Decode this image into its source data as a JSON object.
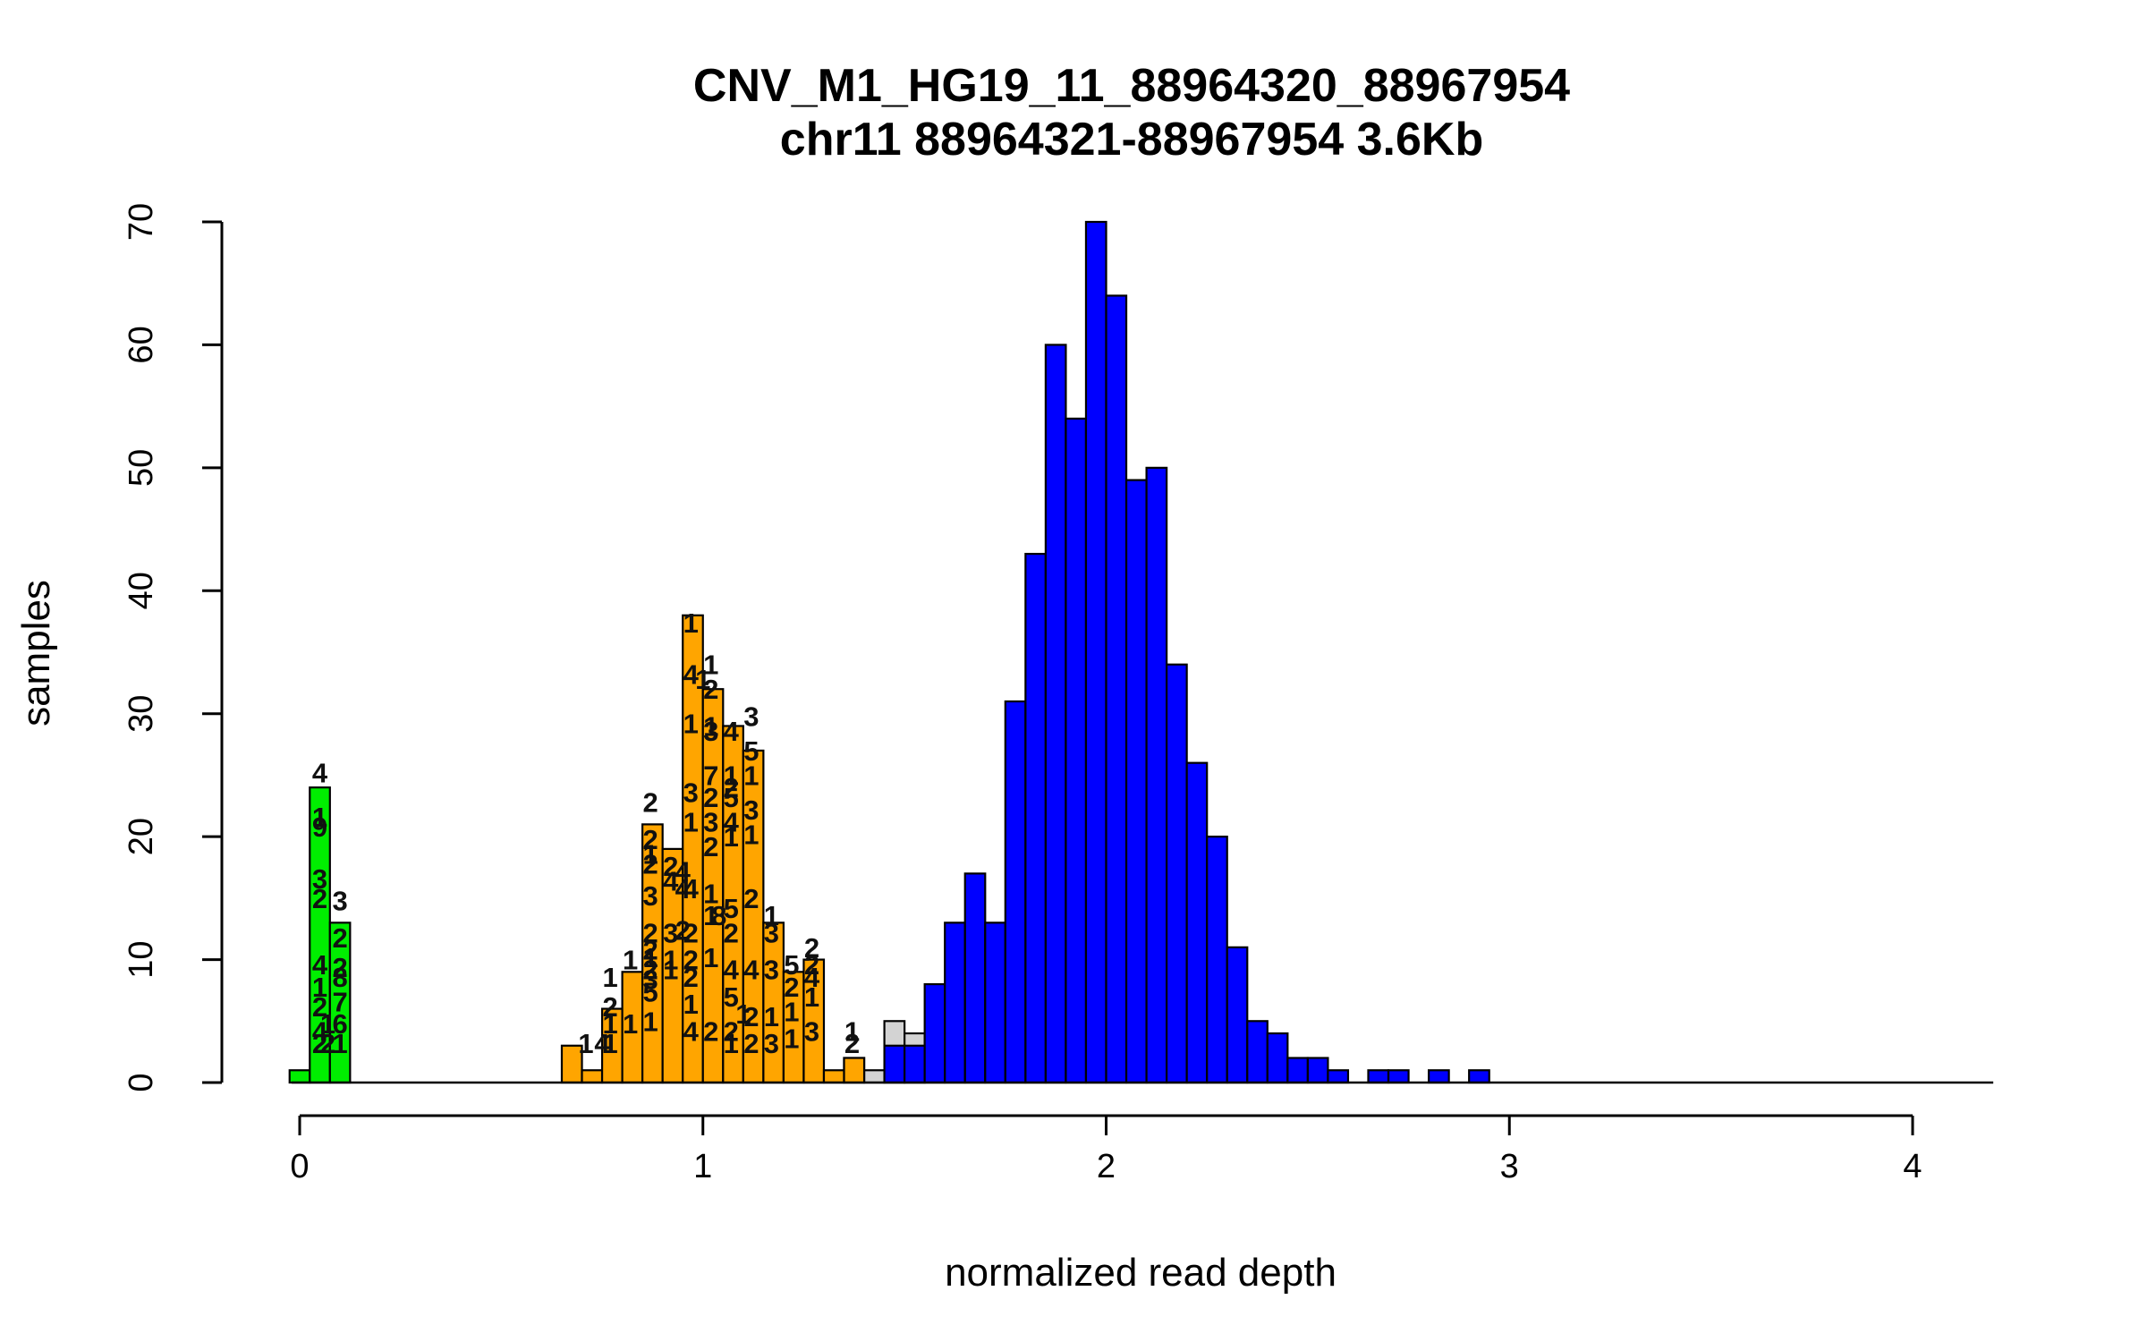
{
  "chart_data": {
    "type": "bar",
    "title": "CNV_M1_HG19_11_88964320_88967954",
    "subtitle": "chr11 88964321-88967954 3.6Kb",
    "xlabel": "normalized read depth",
    "ylabel": "samples",
    "xlim": [
      -0.2,
      4.2
    ],
    "ylim": [
      0,
      70
    ],
    "x_ticks": [
      {
        "value": 0,
        "label": "0"
      },
      {
        "value": 1,
        "label": "1"
      },
      {
        "value": 2,
        "label": "2"
      },
      {
        "value": 3,
        "label": "3"
      },
      {
        "value": 4,
        "label": "4"
      }
    ],
    "y_ticks": [
      {
        "value": 0,
        "label": "0"
      },
      {
        "value": 10,
        "label": "10"
      },
      {
        "value": 20,
        "label": "20"
      },
      {
        "value": 30,
        "label": "30"
      },
      {
        "value": 40,
        "label": "40"
      },
      {
        "value": 50,
        "label": "50"
      },
      {
        "value": 60,
        "label": "60"
      },
      {
        "value": 70,
        "label": "70"
      }
    ],
    "bin_width": 0.05,
    "colors": {
      "copy0": "#00ee00",
      "copy1": "#ffa500",
      "copy2": "#0000ff",
      "unassigned": "#d3d3d3"
    },
    "series": [
      {
        "group": "unassigned",
        "color": "#d3d3d3",
        "bins": [
          {
            "x0": 1.35,
            "count": 2
          },
          {
            "x0": 1.4,
            "count": 1
          },
          {
            "x0": 1.45,
            "count": 5
          },
          {
            "x0": 1.5,
            "count": 4
          }
        ]
      },
      {
        "group": "copy0",
        "color": "#00ee00",
        "bins": [
          {
            "x0": -0.025,
            "count": 1
          },
          {
            "x0": 0.025,
            "count": 24
          },
          {
            "x0": 0.075,
            "count": 13
          }
        ]
      },
      {
        "group": "copy1",
        "color": "#ffa500",
        "bins": [
          {
            "x0": 0.65,
            "count": 3
          },
          {
            "x0": 0.7,
            "count": 1
          },
          {
            "x0": 0.75,
            "count": 6
          },
          {
            "x0": 0.8,
            "count": 9
          },
          {
            "x0": 0.85,
            "count": 21
          },
          {
            "x0": 0.9,
            "count": 19
          },
          {
            "x0": 0.95,
            "count": 38
          },
          {
            "x0": 1.0,
            "count": 32
          },
          {
            "x0": 1.05,
            "count": 29
          },
          {
            "x0": 1.1,
            "count": 27
          },
          {
            "x0": 1.15,
            "count": 13
          },
          {
            "x0": 1.2,
            "count": 9
          },
          {
            "x0": 1.25,
            "count": 10
          },
          {
            "x0": 1.3,
            "count": 1
          },
          {
            "x0": 1.35,
            "count": 2
          }
        ]
      },
      {
        "group": "copy2",
        "color": "#0000ff",
        "bins": [
          {
            "x0": 1.45,
            "count": 3
          },
          {
            "x0": 1.5,
            "count": 3
          },
          {
            "x0": 1.55,
            "count": 8
          },
          {
            "x0": 1.6,
            "count": 13
          },
          {
            "x0": 1.65,
            "count": 17
          },
          {
            "x0": 1.7,
            "count": 13
          },
          {
            "x0": 1.75,
            "count": 31
          },
          {
            "x0": 1.8,
            "count": 43
          },
          {
            "x0": 1.85,
            "count": 60
          },
          {
            "x0": 1.9,
            "count": 54
          },
          {
            "x0": 1.95,
            "count": 70
          },
          {
            "x0": 2.0,
            "count": 64
          },
          {
            "x0": 2.05,
            "count": 49
          },
          {
            "x0": 2.1,
            "count": 50
          },
          {
            "x0": 2.15,
            "count": 34
          },
          {
            "x0": 2.2,
            "count": 26
          },
          {
            "x0": 2.25,
            "count": 20
          },
          {
            "x0": 2.3,
            "count": 11
          },
          {
            "x0": 2.35,
            "count": 5
          },
          {
            "x0": 2.4,
            "count": 4
          },
          {
            "x0": 2.45,
            "count": 2
          },
          {
            "x0": 2.5,
            "count": 2
          },
          {
            "x0": 2.55,
            "count": 1
          },
          {
            "x0": 2.65,
            "count": 1
          },
          {
            "x0": 2.7,
            "count": 1
          },
          {
            "x0": 2.8,
            "count": 1
          },
          {
            "x0": 2.9,
            "count": 1
          }
        ]
      }
    ],
    "bar_annotations": [
      {
        "x": 0.05,
        "y": 25.2,
        "text": "4"
      },
      {
        "x": 0.05,
        "y": 21.6,
        "text": "1"
      },
      {
        "x": 0.05,
        "y": 20.8,
        "text": "9"
      },
      {
        "x": 0.05,
        "y": 16.6,
        "text": "3"
      },
      {
        "x": 0.05,
        "y": 15.0,
        "text": "2"
      },
      {
        "x": 0.05,
        "y": 9.6,
        "text": "4"
      },
      {
        "x": 0.05,
        "y": 7.8,
        "text": "1"
      },
      {
        "x": 0.05,
        "y": 6.2,
        "text": "2"
      },
      {
        "x": 0.05,
        "y": 4.2,
        "text": "4"
      },
      {
        "x": 0.05,
        "y": 3.2,
        "text": "2"
      },
      {
        "x": 0.1,
        "y": 14.8,
        "text": "3"
      },
      {
        "x": 0.1,
        "y": 11.8,
        "text": "2"
      },
      {
        "x": 0.1,
        "y": 9.4,
        "text": "2"
      },
      {
        "x": 0.1,
        "y": 8.6,
        "text": "8"
      },
      {
        "x": 0.1,
        "y": 6.6,
        "text": "7"
      },
      {
        "x": 0.1,
        "y": 4.8,
        "text": "6"
      },
      {
        "x": 0.1,
        "y": 3.2,
        "text": "1"
      },
      {
        "x": 0.07,
        "y": 4.8,
        "text": "1"
      },
      {
        "x": 0.07,
        "y": 3.2,
        "text": "2"
      },
      {
        "x": 0.71,
        "y": 3.2,
        "text": "1"
      },
      {
        "x": 0.75,
        "y": 3.2,
        "text": "4"
      },
      {
        "x": 0.77,
        "y": 6.2,
        "text": "2"
      },
      {
        "x": 0.77,
        "y": 4.8,
        "text": "1"
      },
      {
        "x": 0.77,
        "y": 3.2,
        "text": "1"
      },
      {
        "x": 0.77,
        "y": 8.6,
        "text": "1"
      },
      {
        "x": 0.82,
        "y": 10.0,
        "text": "1"
      },
      {
        "x": 0.82,
        "y": 4.8,
        "text": "1"
      },
      {
        "x": 0.87,
        "y": 5.0,
        "text": "1"
      },
      {
        "x": 0.87,
        "y": 22.8,
        "text": "2"
      },
      {
        "x": 0.87,
        "y": 19.8,
        "text": "2"
      },
      {
        "x": 0.87,
        "y": 18.6,
        "text": "1"
      },
      {
        "x": 0.87,
        "y": 17.8,
        "text": "2"
      },
      {
        "x": 0.87,
        "y": 15.2,
        "text": "3"
      },
      {
        "x": 0.87,
        "y": 12.2,
        "text": "2"
      },
      {
        "x": 0.87,
        "y": 10.8,
        "text": "2"
      },
      {
        "x": 0.87,
        "y": 9.2,
        "text": "2"
      },
      {
        "x": 0.87,
        "y": 7.4,
        "text": "5"
      },
      {
        "x": 0.87,
        "y": 8.4,
        "text": "3"
      },
      {
        "x": 0.87,
        "y": 10.2,
        "text": "1"
      },
      {
        "x": 0.92,
        "y": 17.6,
        "text": "2"
      },
      {
        "x": 0.92,
        "y": 16.4,
        "text": "4"
      },
      {
        "x": 0.92,
        "y": 12.2,
        "text": "3"
      },
      {
        "x": 0.92,
        "y": 10.0,
        "text": "1"
      },
      {
        "x": 0.92,
        "y": 9.2,
        "text": "1"
      },
      {
        "x": 0.95,
        "y": 17.2,
        "text": "4"
      },
      {
        "x": 0.95,
        "y": 15.8,
        "text": "4"
      },
      {
        "x": 0.95,
        "y": 12.4,
        "text": "2"
      },
      {
        "x": 0.97,
        "y": 37.4,
        "text": "1"
      },
      {
        "x": 0.97,
        "y": 33.2,
        "text": "4"
      },
      {
        "x": 0.97,
        "y": 29.2,
        "text": "1"
      },
      {
        "x": 0.97,
        "y": 23.6,
        "text": "3"
      },
      {
        "x": 0.97,
        "y": 21.2,
        "text": "1"
      },
      {
        "x": 0.97,
        "y": 15.8,
        "text": "4"
      },
      {
        "x": 0.97,
        "y": 12.2,
        "text": "2"
      },
      {
        "x": 0.97,
        "y": 10.0,
        "text": "2"
      },
      {
        "x": 0.97,
        "y": 8.6,
        "text": "2"
      },
      {
        "x": 0.97,
        "y": 6.4,
        "text": "1"
      },
      {
        "x": 0.97,
        "y": 4.2,
        "text": "4"
      },
      {
        "x": 1.0,
        "y": 32.8,
        "text": "1"
      },
      {
        "x": 1.02,
        "y": 34.0,
        "text": "1"
      },
      {
        "x": 1.02,
        "y": 32.0,
        "text": "2"
      },
      {
        "x": 1.02,
        "y": 29.0,
        "text": "1"
      },
      {
        "x": 1.02,
        "y": 28.6,
        "text": "3"
      },
      {
        "x": 1.02,
        "y": 25.0,
        "text": "7"
      },
      {
        "x": 1.02,
        "y": 23.2,
        "text": "2"
      },
      {
        "x": 1.02,
        "y": 21.2,
        "text": "3"
      },
      {
        "x": 1.02,
        "y": 19.2,
        "text": "2"
      },
      {
        "x": 1.02,
        "y": 15.4,
        "text": "1"
      },
      {
        "x": 1.02,
        "y": 13.6,
        "text": "1"
      },
      {
        "x": 1.02,
        "y": 10.2,
        "text": "1"
      },
      {
        "x": 1.02,
        "y": 4.2,
        "text": "2"
      },
      {
        "x": 1.04,
        "y": 13.6,
        "text": "8"
      },
      {
        "x": 1.07,
        "y": 28.6,
        "text": "4"
      },
      {
        "x": 1.07,
        "y": 25.0,
        "text": "1"
      },
      {
        "x": 1.07,
        "y": 23.2,
        "text": "5"
      },
      {
        "x": 1.07,
        "y": 24.0,
        "text": "2"
      },
      {
        "x": 1.07,
        "y": 21.2,
        "text": "4"
      },
      {
        "x": 1.07,
        "y": 20.0,
        "text": "1"
      },
      {
        "x": 1.07,
        "y": 14.2,
        "text": "5"
      },
      {
        "x": 1.07,
        "y": 12.2,
        "text": "2"
      },
      {
        "x": 1.07,
        "y": 9.2,
        "text": "4"
      },
      {
        "x": 1.07,
        "y": 7.0,
        "text": "5"
      },
      {
        "x": 1.07,
        "y": 4.2,
        "text": "2"
      },
      {
        "x": 1.07,
        "y": 3.2,
        "text": "1"
      },
      {
        "x": 1.12,
        "y": 29.8,
        "text": "3"
      },
      {
        "x": 1.12,
        "y": 27.0,
        "text": "5"
      },
      {
        "x": 1.12,
        "y": 25.0,
        "text": "1"
      },
      {
        "x": 1.12,
        "y": 22.2,
        "text": "3"
      },
      {
        "x": 1.12,
        "y": 20.2,
        "text": "1"
      },
      {
        "x": 1.12,
        "y": 15.0,
        "text": "2"
      },
      {
        "x": 1.12,
        "y": 9.2,
        "text": "4"
      },
      {
        "x": 1.12,
        "y": 5.4,
        "text": "2"
      },
      {
        "x": 1.12,
        "y": 3.2,
        "text": "2"
      },
      {
        "x": 1.1,
        "y": 5.6,
        "text": "1"
      },
      {
        "x": 1.17,
        "y": 13.6,
        "text": "1"
      },
      {
        "x": 1.17,
        "y": 12.2,
        "text": "3"
      },
      {
        "x": 1.17,
        "y": 9.2,
        "text": "3"
      },
      {
        "x": 1.17,
        "y": 5.4,
        "text": "1"
      },
      {
        "x": 1.17,
        "y": 3.2,
        "text": "3"
      },
      {
        "x": 1.22,
        "y": 9.6,
        "text": "5"
      },
      {
        "x": 1.22,
        "y": 7.8,
        "text": "2"
      },
      {
        "x": 1.22,
        "y": 5.8,
        "text": "1"
      },
      {
        "x": 1.22,
        "y": 3.6,
        "text": "1"
      },
      {
        "x": 1.27,
        "y": 11.0,
        "text": "2"
      },
      {
        "x": 1.27,
        "y": 9.6,
        "text": "2"
      },
      {
        "x": 1.27,
        "y": 8.6,
        "text": "4"
      },
      {
        "x": 1.27,
        "y": 7.0,
        "text": "1"
      },
      {
        "x": 1.27,
        "y": 4.2,
        "text": "3"
      },
      {
        "x": 1.37,
        "y": 4.2,
        "text": "1"
      },
      {
        "x": 1.37,
        "y": 3.2,
        "text": "2"
      }
    ]
  }
}
